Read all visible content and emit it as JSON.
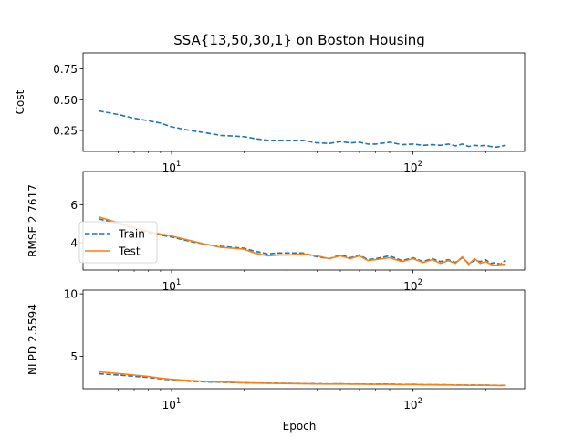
{
  "chart_data": {
    "type": "line",
    "title": "SSA{13,50,30,1} on Boston Housing",
    "xlabel": "Epoch",
    "xscale": "log",
    "xlim": [
      4.3,
      290
    ],
    "x_major_ticks": [
      {
        "value": 10,
        "base": "10",
        "exp": "1"
      },
      {
        "value": 100,
        "base": "10",
        "exp": "2"
      }
    ],
    "x": [
      5,
      6,
      7,
      8,
      9,
      10,
      12,
      14,
      16,
      18,
      20,
      22,
      25,
      28,
      31,
      35,
      40,
      45,
      50,
      55,
      60,
      65,
      70,
      80,
      90,
      100,
      110,
      120,
      130,
      140,
      150,
      160,
      170,
      180,
      190,
      200,
      210,
      220,
      230,
      240
    ],
    "legend": {
      "position": "center-left",
      "entries": [
        "Train",
        "Test"
      ]
    },
    "colors": {
      "train": "#1f77b4",
      "test": "#ff7f0e"
    },
    "panels": [
      {
        "id": "cost",
        "ylabel": "Cost",
        "ylim": [
          0.08,
          0.88
        ],
        "yticks": [
          0.25,
          0.5,
          0.75
        ],
        "ytick_labels": [
          "0.25",
          "0.50",
          "0.75"
        ],
        "series": [
          {
            "name": "Train",
            "style": "dashed",
            "values": [
              0.41,
              0.38,
              0.35,
              0.33,
              0.31,
              0.28,
              0.25,
              0.23,
              0.21,
              0.205,
              0.2,
              0.185,
              0.17,
              0.17,
              0.17,
              0.17,
              0.15,
              0.145,
              0.16,
              0.15,
              0.155,
              0.14,
              0.14,
              0.155,
              0.135,
              0.14,
              0.13,
              0.135,
              0.13,
              0.14,
              0.125,
              0.14,
              0.12,
              0.13,
              0.125,
              0.13,
              0.12,
              0.115,
              0.12,
              0.13
            ]
          }
        ]
      },
      {
        "id": "rmse",
        "ylabel": "RMSE 2.7617",
        "ylim": [
          2.55,
          7.75
        ],
        "yticks": [
          4,
          6
        ],
        "ytick_labels": [
          "4",
          "6"
        ],
        "legend": true,
        "series": [
          {
            "name": "Train",
            "style": "dashed",
            "values": [
              5.25,
              5.0,
              4.75,
              4.55,
              4.4,
              4.3,
              4.05,
              3.9,
              3.8,
              3.75,
              3.7,
              3.55,
              3.4,
              3.45,
              3.45,
              3.45,
              3.25,
              3.15,
              3.35,
              3.2,
              3.35,
              3.1,
              3.15,
              3.3,
              3.05,
              3.2,
              3.0,
              3.15,
              3.0,
              3.1,
              2.95,
              3.2,
              2.9,
              3.05,
              3.0,
              3.1,
              2.9,
              2.95,
              2.85,
              3.05
            ]
          },
          {
            "name": "Test",
            "style": "solid",
            "values": [
              5.35,
              5.05,
              4.8,
              4.6,
              4.45,
              4.35,
              4.1,
              3.9,
              3.75,
              3.7,
              3.65,
              3.45,
              3.3,
              3.35,
              3.35,
              3.4,
              3.3,
              3.15,
              3.3,
              3.15,
              3.3,
              3.05,
              3.1,
              3.2,
              3.0,
              3.15,
              2.95,
              3.1,
              2.9,
              3.05,
              2.9,
              3.25,
              2.85,
              3.15,
              2.9,
              3.0,
              2.85,
              2.8,
              2.85,
              2.85
            ]
          }
        ]
      },
      {
        "id": "nlpd",
        "ylabel": "NLPD 2.5594",
        "ylim": [
          2.4,
          10.3
        ],
        "yticks": [
          5,
          10
        ],
        "ytick_labels": [
          "5",
          "10"
        ],
        "series": [
          {
            "name": "Train",
            "style": "dashed",
            "values": [
              3.6,
              3.5,
              3.4,
              3.3,
              3.2,
              3.1,
              3.0,
              2.95,
              2.92,
              2.9,
              2.88,
              2.86,
              2.85,
              2.84,
              2.83,
              2.82,
              2.8,
              2.79,
              2.8,
              2.78,
              2.79,
              2.77,
              2.77,
              2.78,
              2.75,
              2.76,
              2.73,
              2.73,
              2.72,
              2.72,
              2.7,
              2.71,
              2.69,
              2.7,
              2.69,
              2.7,
              2.68,
              2.68,
              2.67,
              2.68
            ]
          },
          {
            "name": "Test",
            "style": "solid",
            "values": [
              3.75,
              3.62,
              3.5,
              3.38,
              3.25,
              3.15,
              3.05,
              2.98,
              2.94,
              2.91,
              2.88,
              2.86,
              2.84,
              2.83,
              2.82,
              2.81,
              2.79,
              2.78,
              2.79,
              2.77,
              2.78,
              2.76,
              2.76,
              2.76,
              2.74,
              2.75,
              2.72,
              2.72,
              2.71,
              2.71,
              2.69,
              2.7,
              2.68,
              2.69,
              2.68,
              2.69,
              2.67,
              2.67,
              2.66,
              2.67
            ]
          }
        ]
      }
    ]
  }
}
